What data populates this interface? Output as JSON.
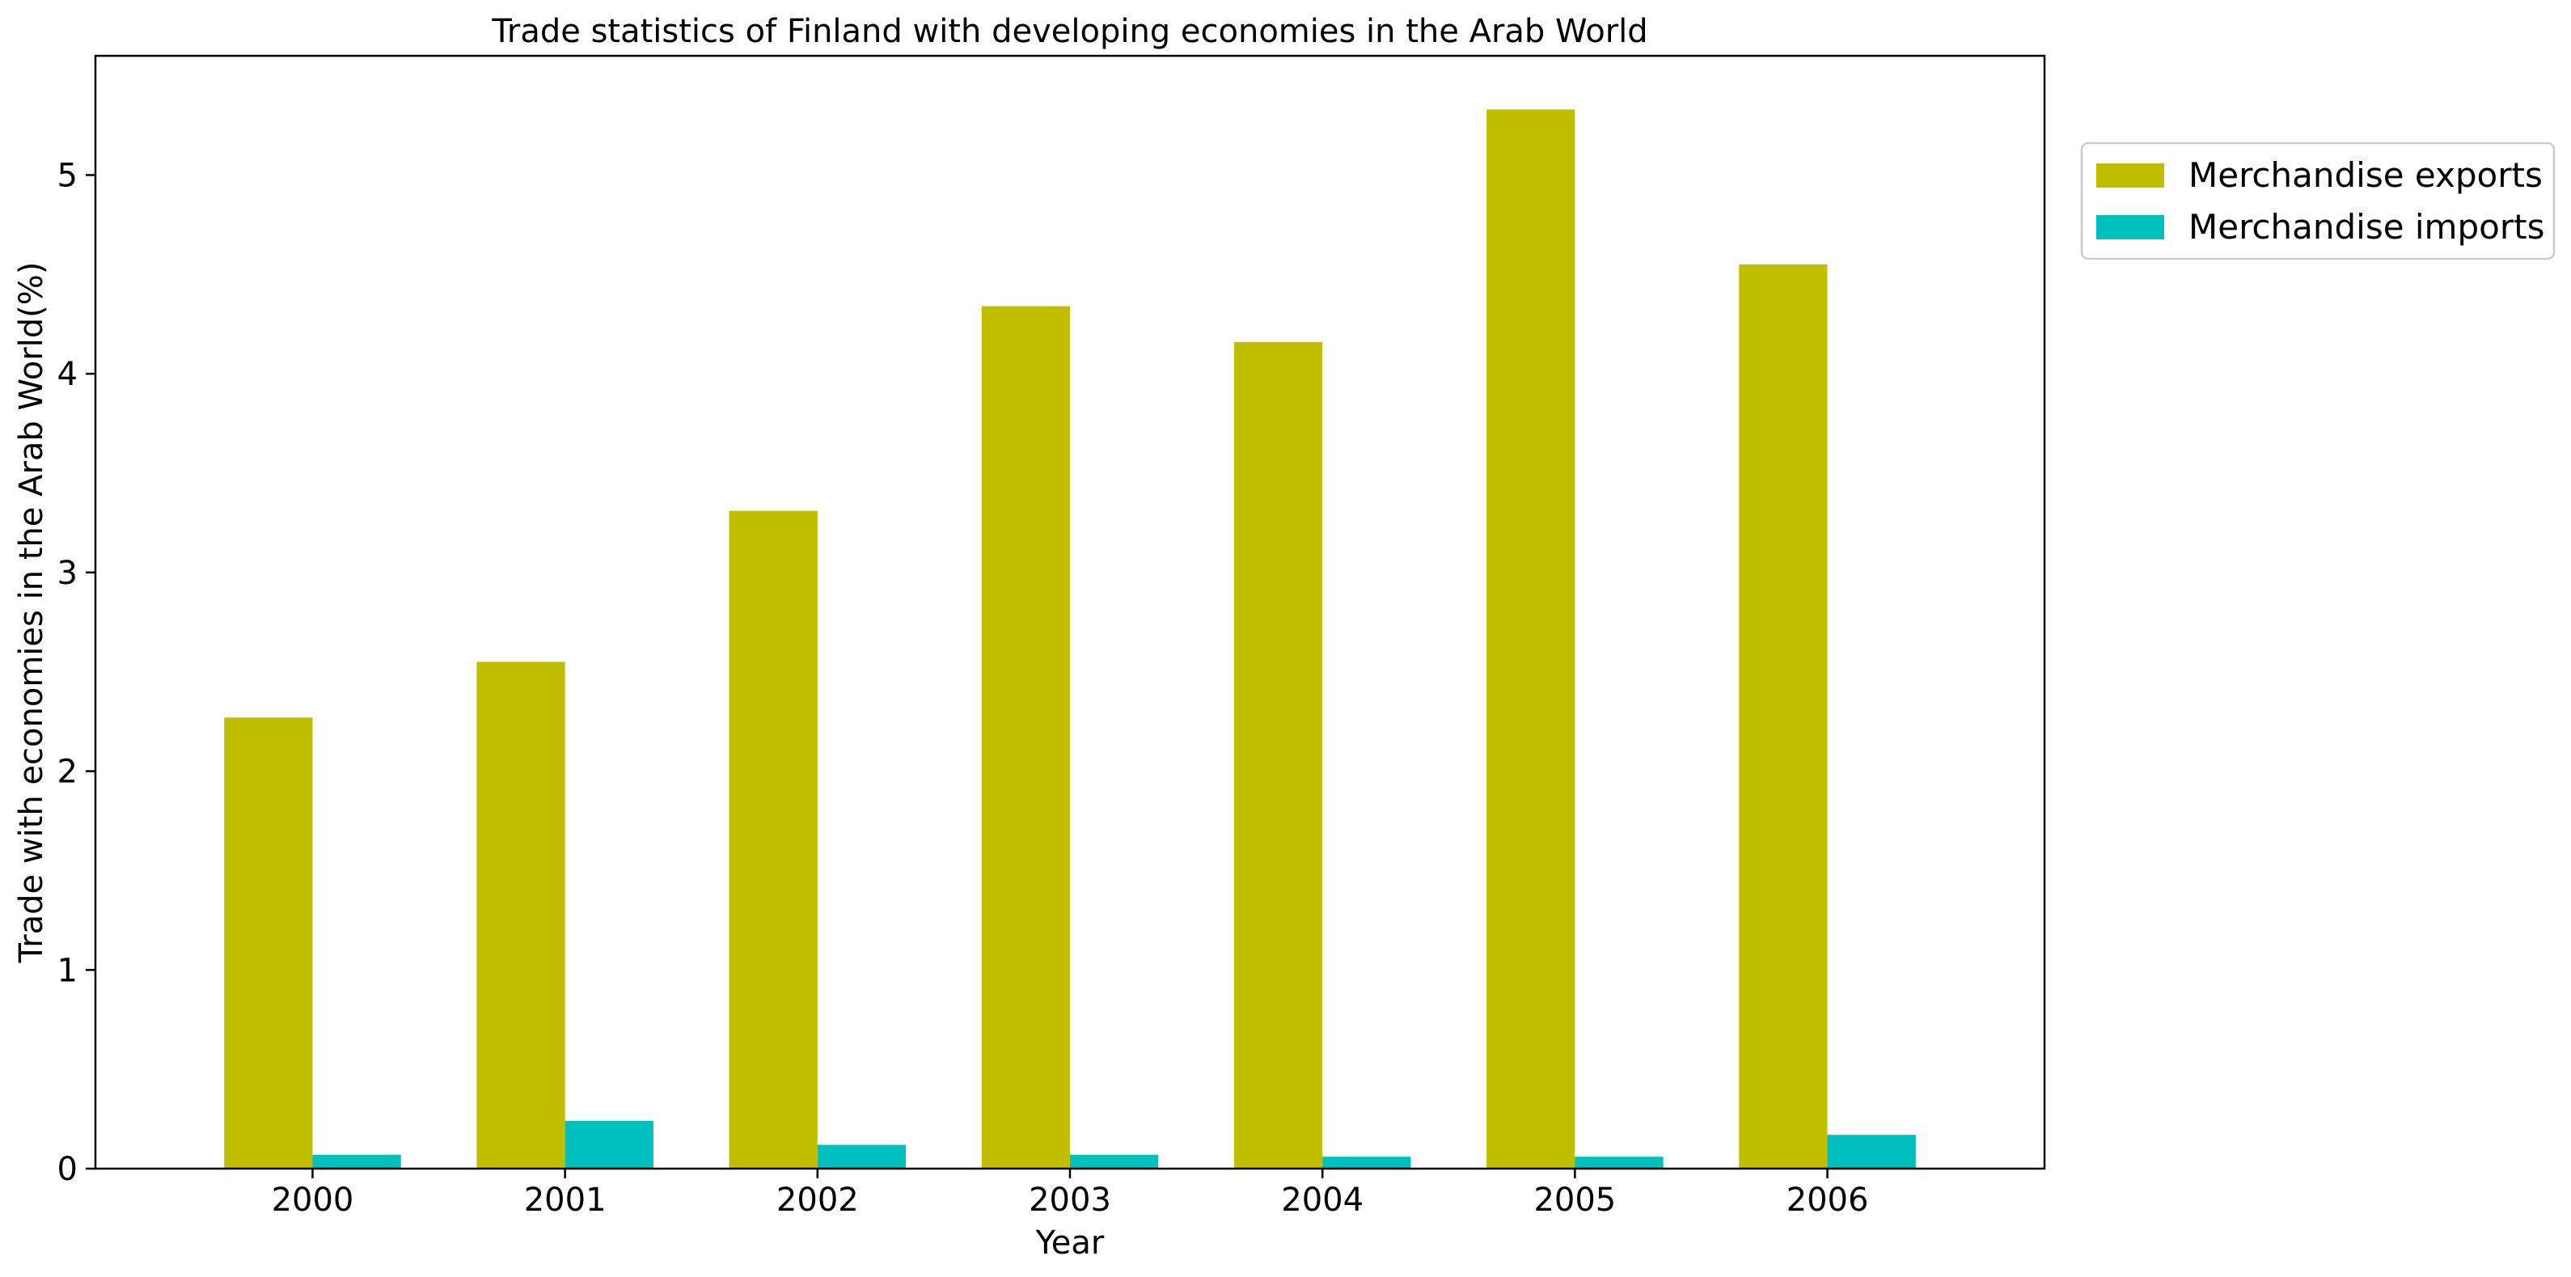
{
  "chart_data": {
    "type": "bar",
    "title": "Trade statistics of Finland with developing economies in the Arab World",
    "xlabel": "Year",
    "ylabel": "Trade with economies in the Arab World(%)",
    "categories": [
      "2000",
      "2001",
      "2002",
      "2003",
      "2004",
      "2005",
      "2006"
    ],
    "series": [
      {
        "name": "Merchandise exports",
        "color": "#bfbf00",
        "values": [
          2.27,
          2.55,
          3.31,
          4.34,
          4.16,
          5.33,
          4.55
        ]
      },
      {
        "name": "Merchandise imports",
        "color": "#00bfbf",
        "values": [
          0.07,
          0.24,
          0.12,
          0.07,
          0.06,
          0.06,
          0.17
        ]
      }
    ],
    "ylim": [
      0,
      5.6
    ],
    "yticks": [
      0,
      1,
      2,
      3,
      4,
      5
    ],
    "grid": false,
    "legend_position": "right"
  }
}
